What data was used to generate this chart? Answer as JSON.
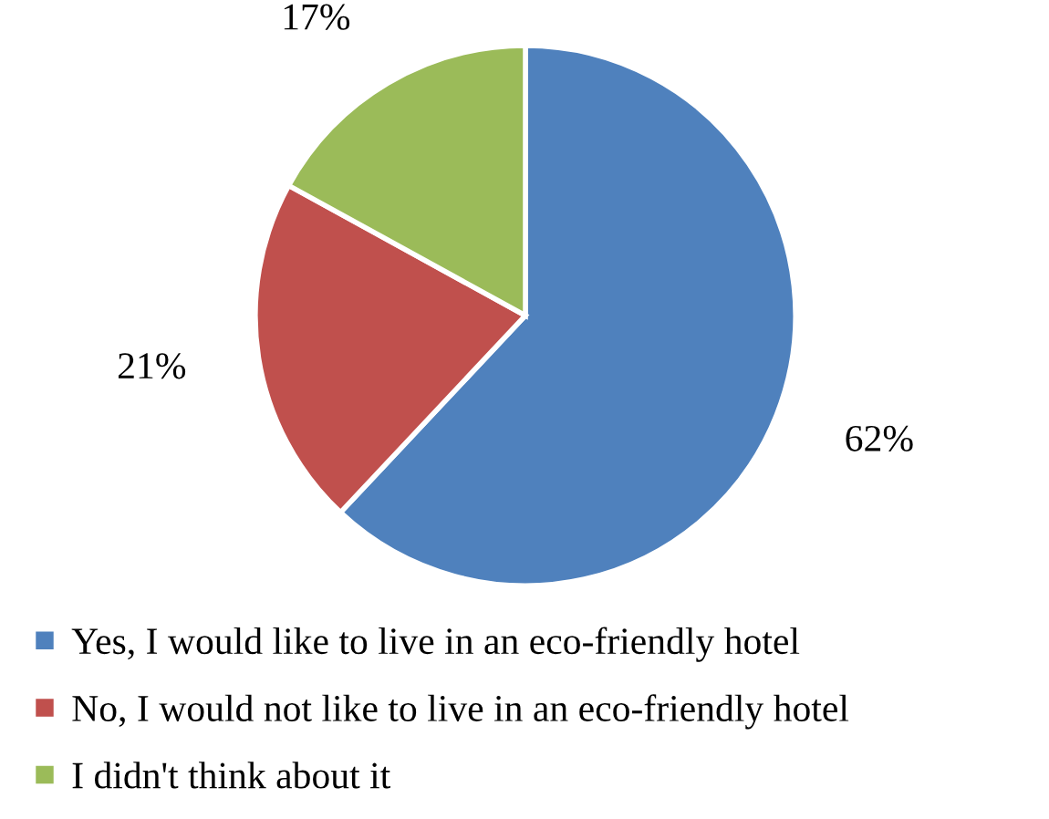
{
  "chart_data": {
    "type": "pie",
    "categories": [
      "Yes, I would like to live in an eco-friendly hotel",
      "No, I would not like to live in an eco-friendly hotel",
      "I didn't think about it"
    ],
    "values": [
      62,
      21,
      17
    ],
    "colors": [
      "#4f81bd",
      "#c0504d",
      "#9bbb59"
    ],
    "value_labels": [
      "62%",
      "21%",
      "17%"
    ],
    "legend": "bottom"
  }
}
